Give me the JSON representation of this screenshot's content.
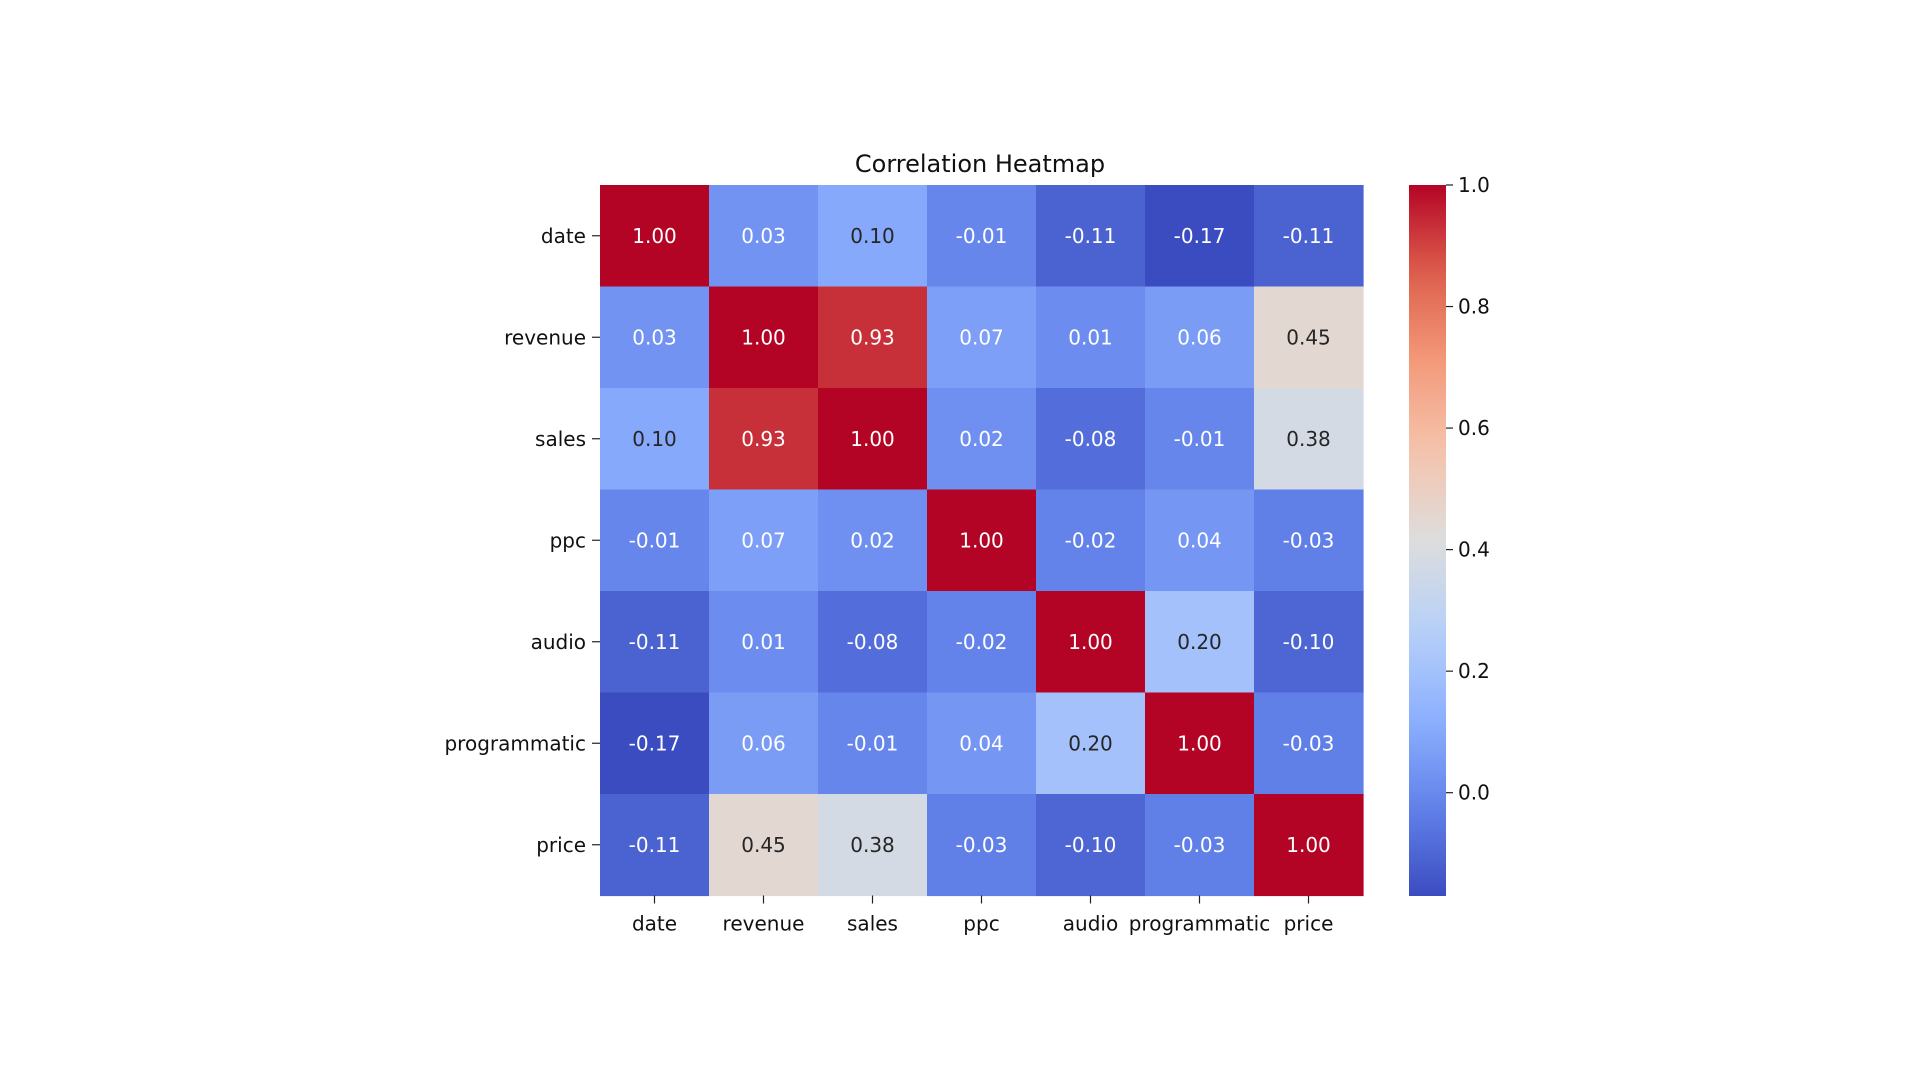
{
  "chart_data": {
    "type": "heatmap",
    "title": "Correlation Heatmap",
    "xlabel": "",
    "ylabel": "",
    "x_labels": [
      "date",
      "revenue",
      "sales",
      "ppc",
      "audio",
      "programmatic",
      "price"
    ],
    "y_labels": [
      "date",
      "revenue",
      "sales",
      "ppc",
      "audio",
      "programmatic",
      "price"
    ],
    "values": [
      [
        1.0,
        0.03,
        0.1,
        -0.01,
        -0.11,
        -0.17,
        -0.11
      ],
      [
        0.03,
        1.0,
        0.93,
        0.07,
        0.01,
        0.06,
        0.45
      ],
      [
        0.1,
        0.93,
        1.0,
        0.02,
        -0.08,
        -0.01,
        0.38
      ],
      [
        -0.01,
        0.07,
        0.02,
        1.0,
        -0.02,
        0.04,
        -0.03
      ],
      [
        -0.11,
        0.01,
        -0.08,
        -0.02,
        1.0,
        0.2,
        -0.1
      ],
      [
        -0.17,
        0.06,
        -0.01,
        0.04,
        0.2,
        1.0,
        -0.03
      ],
      [
        -0.11,
        0.45,
        0.38,
        -0.03,
        -0.1,
        -0.03,
        1.0
      ]
    ],
    "cell_labels": [
      [
        "1.00",
        "0.03",
        "0.10",
        "-0.01",
        "-0.11",
        "-0.17",
        "-0.11"
      ],
      [
        "0.03",
        "1.00",
        "0.93",
        "0.07",
        "0.01",
        "0.06",
        "0.45"
      ],
      [
        "0.10",
        "0.93",
        "1.00",
        "0.02",
        "-0.08",
        "-0.01",
        "0.38"
      ],
      [
        "-0.01",
        "0.07",
        "0.02",
        "1.00",
        "-0.02",
        "0.04",
        "-0.03"
      ],
      [
        "-0.11",
        "0.01",
        "-0.08",
        "-0.02",
        "1.00",
        "0.20",
        "-0.10"
      ],
      [
        "-0.17",
        "0.06",
        "-0.01",
        "0.04",
        "0.20",
        "1.00",
        "-0.03"
      ],
      [
        "-0.11",
        "0.45",
        "0.38",
        "-0.03",
        "-0.10",
        "-0.03",
        "1.00"
      ]
    ],
    "colormap": "coolwarm",
    "colorbar": {
      "vmin": -0.17,
      "vmax": 1.0,
      "ticks": [
        0.0,
        0.2,
        0.4,
        0.6,
        0.8,
        1.0
      ],
      "tick_labels": [
        "0.0",
        "0.2",
        "0.4",
        "0.6",
        "0.8",
        "1.0"
      ]
    },
    "grid": false,
    "legend": "colorbar-right"
  }
}
